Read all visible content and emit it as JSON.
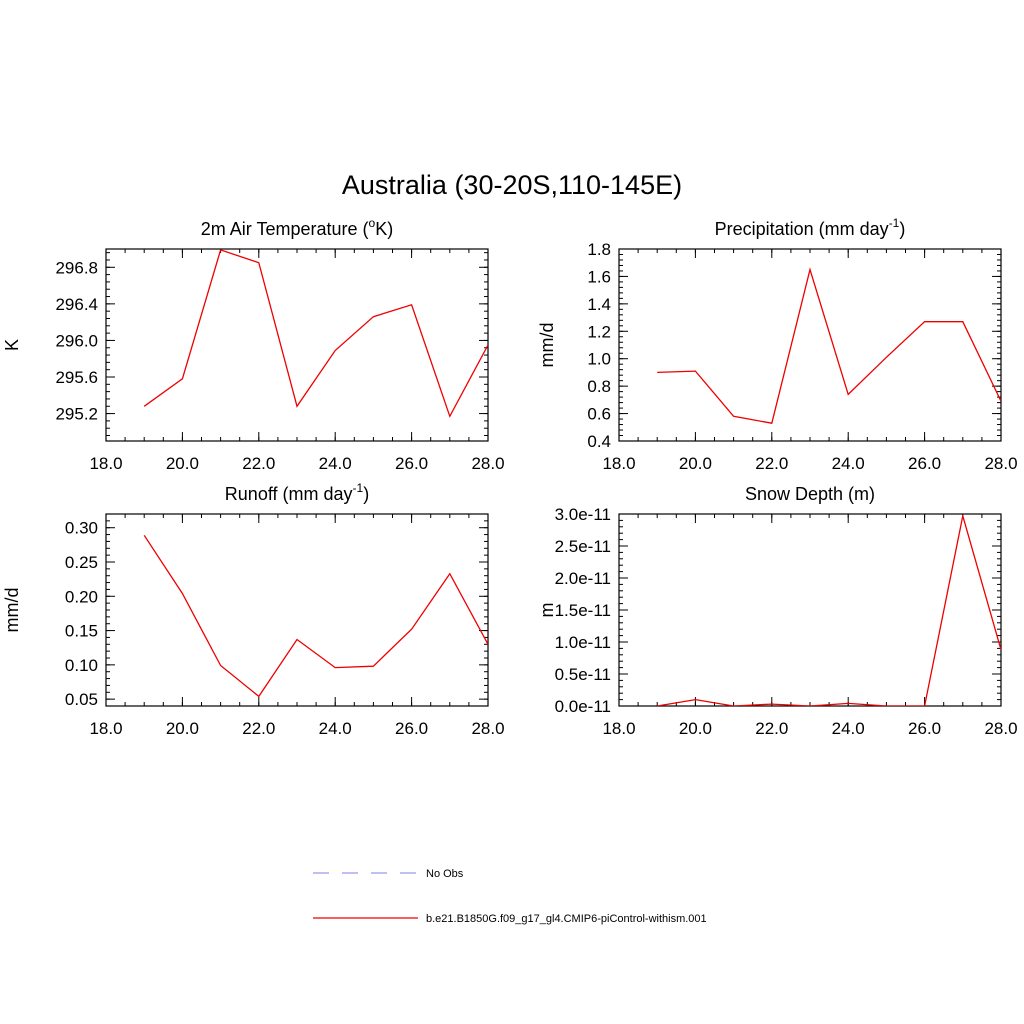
{
  "figure": {
    "title": "Australia (30-20S,110-145E)"
  },
  "legend": {
    "entries": [
      {
        "label": "No Obs",
        "color": "#9999ee",
        "dash": true
      },
      {
        "label": "b.e21.B1850G.f09_g17_gl4.CMIP6-piControl-withism.001",
        "color": "#ee0000",
        "dash": false
      }
    ]
  },
  "chart_data": [
    {
      "type": "line",
      "title": "2m Air Temperature (",
      "title_sup": "o",
      "title_post": "K)",
      "ylabel": "K",
      "xlim": [
        18,
        28
      ],
      "ylim": [
        294.9,
        297.0
      ],
      "xticks": [
        18,
        20,
        22,
        24,
        26,
        28
      ],
      "xtick_labels": [
        "18.0",
        "20.0",
        "22.0",
        "24.0",
        "26.0",
        "28.0"
      ],
      "yticks": [
        295.2,
        295.6,
        296.0,
        296.4,
        296.8
      ],
      "ytick_labels": [
        "295.2",
        "295.6",
        "296.0",
        "296.4",
        "296.8"
      ],
      "series": [
        {
          "color": "#ee0000",
          "x": [
            19,
            20,
            21,
            22,
            23,
            24,
            25,
            26,
            27,
            28
          ],
          "y": [
            295.28,
            295.58,
            296.99,
            296.85,
            295.28,
            295.89,
            296.26,
            296.39,
            295.17,
            295.95
          ]
        }
      ]
    },
    {
      "type": "line",
      "title": "Precipitation (mm day",
      "title_sup": "-1",
      "title_post": ")",
      "ylabel": "mm/d",
      "xlim": [
        18,
        28
      ],
      "ylim": [
        0.4,
        1.8
      ],
      "xticks": [
        18,
        20,
        22,
        24,
        26,
        28
      ],
      "xtick_labels": [
        "18.0",
        "20.0",
        "22.0",
        "24.0",
        "26.0",
        "28.0"
      ],
      "yticks": [
        0.4,
        0.6,
        0.8,
        1.0,
        1.2,
        1.4,
        1.6,
        1.8
      ],
      "ytick_labels": [
        "0.4",
        "0.6",
        "0.8",
        "1.0",
        "1.2",
        "1.4",
        "1.6",
        "1.8"
      ],
      "series": [
        {
          "color": "#ee0000",
          "x": [
            19,
            20,
            21,
            22,
            23,
            24,
            25,
            26,
            27,
            28
          ],
          "y": [
            0.9,
            0.91,
            0.58,
            0.53,
            1.65,
            0.74,
            1.01,
            1.27,
            1.27,
            0.69
          ]
        }
      ]
    },
    {
      "type": "line",
      "title": "Runoff (mm day",
      "title_sup": "-1",
      "title_post": ")",
      "ylabel": "mm/d",
      "xlim": [
        18,
        28
      ],
      "ylim": [
        0.04,
        0.32
      ],
      "xticks": [
        18,
        20,
        22,
        24,
        26,
        28
      ],
      "xtick_labels": [
        "18.0",
        "20.0",
        "22.0",
        "24.0",
        "26.0",
        "28.0"
      ],
      "yticks": [
        0.05,
        0.1,
        0.15,
        0.2,
        0.25,
        0.3
      ],
      "ytick_labels": [
        "0.05",
        "0.10",
        "0.15",
        "0.20",
        "0.25",
        "0.30"
      ],
      "series": [
        {
          "color": "#ee0000",
          "x": [
            19,
            20,
            21,
            22,
            23,
            24,
            25,
            26,
            27,
            28
          ],
          "y": [
            0.289,
            0.204,
            0.099,
            0.054,
            0.137,
            0.096,
            0.098,
            0.152,
            0.233,
            0.13
          ]
        }
      ]
    },
    {
      "type": "line",
      "title": "Snow Depth (m)",
      "title_sup": "",
      "title_post": "",
      "ylabel": "m",
      "xlim": [
        18,
        28
      ],
      "ylim": [
        0,
        3e-11
      ],
      "xticks": [
        18,
        20,
        22,
        24,
        26,
        28
      ],
      "xtick_labels": [
        "18.0",
        "20.0",
        "22.0",
        "24.0",
        "26.0",
        "28.0"
      ],
      "yticks": [
        0,
        5e-12,
        1e-11,
        1.5e-11,
        2e-11,
        2.5e-11,
        3e-11
      ],
      "ytick_labels": [
        "0.0e-11",
        "0.5e-11",
        "1.0e-11",
        "1.5e-11",
        "2.0e-11",
        "2.5e-11",
        "3.0e-11"
      ],
      "series": [
        {
          "color": "#ee0000",
          "x": [
            19,
            20,
            21,
            22,
            23,
            24,
            25,
            26,
            27,
            28
          ],
          "y": [
            0,
            1e-12,
            0,
            3e-13,
            0,
            4e-13,
            0,
            0,
            2.97e-11,
            8.8e-12
          ]
        }
      ]
    }
  ]
}
